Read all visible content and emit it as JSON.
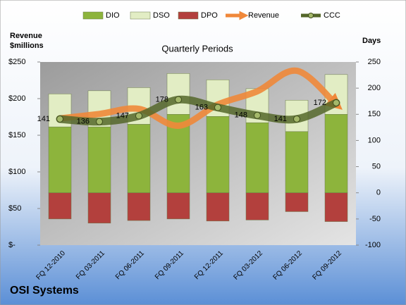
{
  "chart_data": {
    "type": "bar",
    "title": "Quarterly Periods",
    "y_label": "Revenue $millions",
    "y2_label": "Days",
    "caption": "OSI Systems",
    "categories": [
      "FQ 12-2010",
      "FQ 03-2011",
      "FQ 06-2011",
      "FQ 09-2011",
      "FQ 12-2011",
      "FQ 03-2012",
      "FQ 06-2012",
      "FQ 09-2012"
    ],
    "series": [
      {
        "name": "DIO",
        "type": "bar",
        "axis": "y2",
        "color": "#8db43c",
        "values": [
          126,
          126,
          131,
          150,
          146,
          134,
          117,
          150
        ]
      },
      {
        "name": "DSO",
        "type": "bar",
        "axis": "y2",
        "color": "#e2edc4",
        "values": [
          63,
          69,
          70,
          78,
          70,
          65,
          60,
          76
        ]
      },
      {
        "name": "DPO",
        "type": "bar",
        "axis": "y2",
        "color": "#b3403d",
        "values": [
          -50,
          -58,
          -53,
          -50,
          -54,
          -52,
          -36,
          -55
        ]
      },
      {
        "name": "Revenue",
        "type": "line",
        "axis": "y",
        "color": "#f0883a",
        "values": [
          173,
          179,
          186,
          163,
          192,
          210,
          238,
          192
        ]
      },
      {
        "name": "CCC",
        "type": "line",
        "axis": "y2",
        "color": "#55672a",
        "values": [
          141,
          136,
          147,
          178,
          163,
          148,
          141,
          172
        ]
      }
    ],
    "ylim": [
      0,
      250
    ],
    "yticks": [
      {
        "value": 0,
        "label": "$-"
      },
      {
        "value": 50,
        "label": "$50"
      },
      {
        "value": 100,
        "label": "$100"
      },
      {
        "value": 150,
        "label": "$150"
      },
      {
        "value": 200,
        "label": "$200"
      },
      {
        "value": 250,
        "label": "$250"
      }
    ],
    "y2lim": [
      -100,
      250
    ],
    "y2ticks": [
      -100,
      -50,
      0,
      50,
      100,
      150,
      200,
      250
    ],
    "legend": "top"
  }
}
